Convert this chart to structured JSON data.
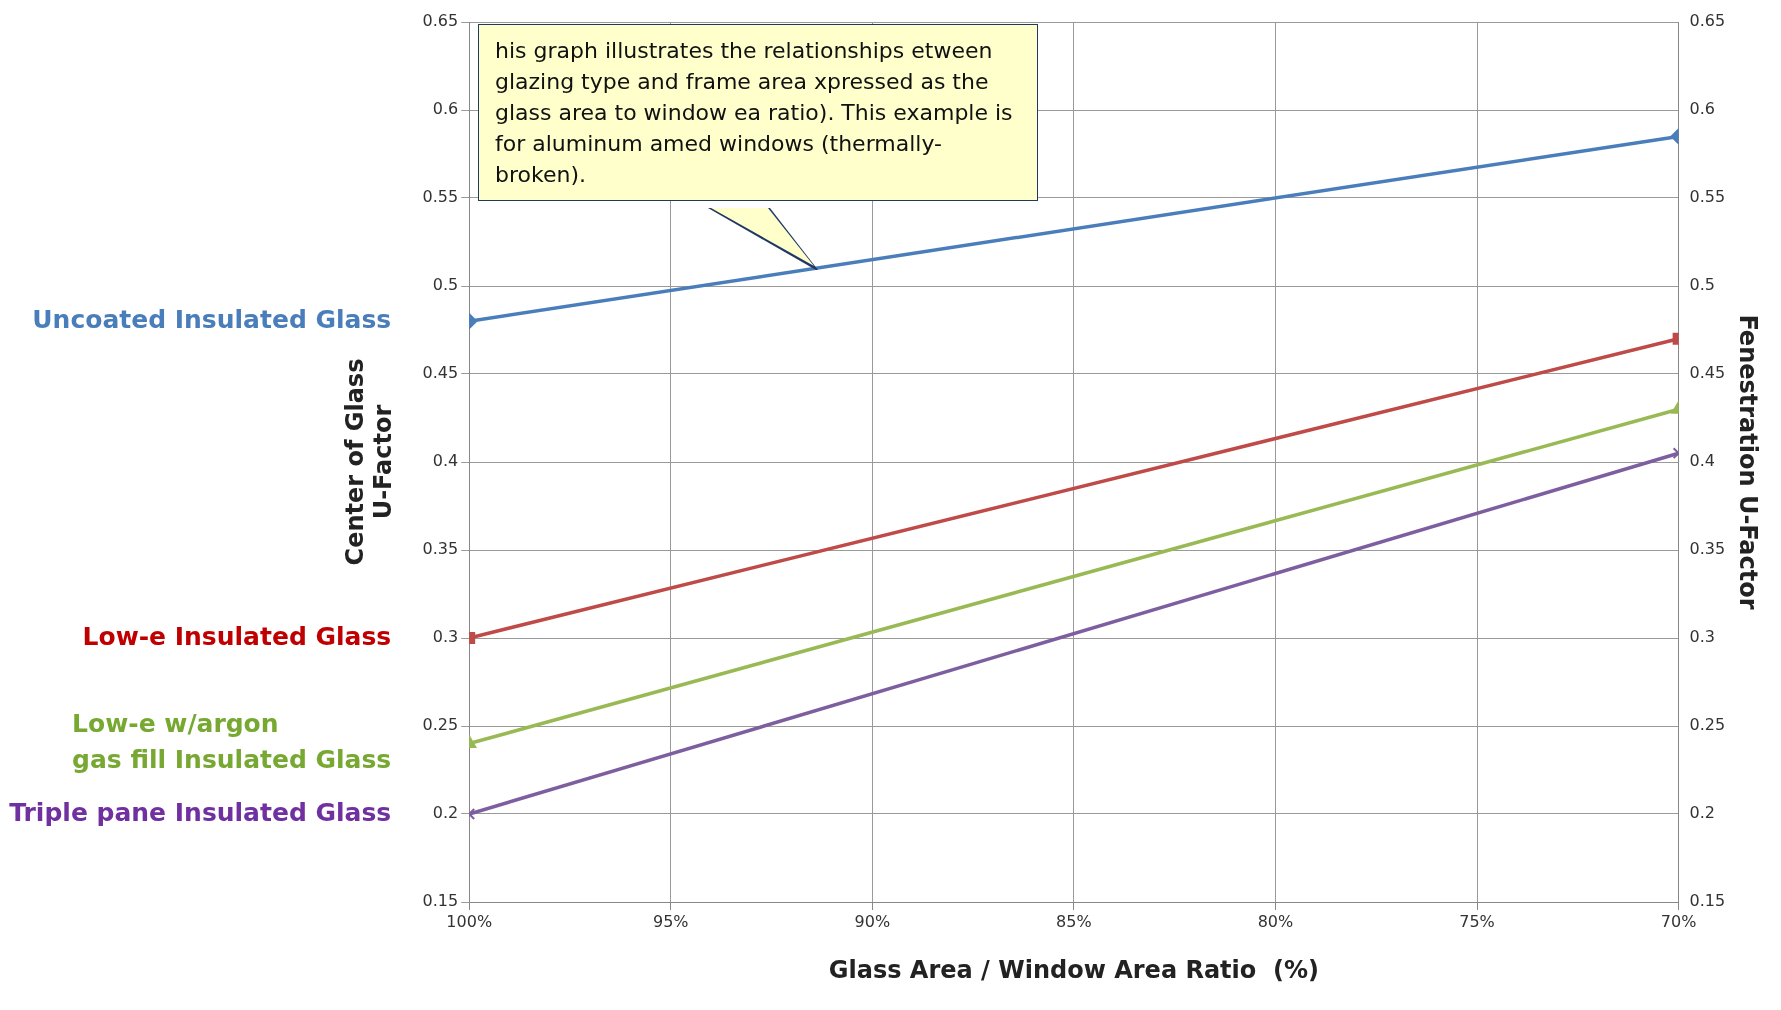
{
  "chart_data": {
    "type": "line",
    "xlabel": "Glass Area / Window Area Ratio  (%)",
    "ylabel": "Center of Glass\nU-Factor",
    "y2label": "Fenestration U-Factor",
    "annotations": [
      "his graph illustrates the relationships etween glazing type and frame area xpressed as the glass area to window ea ratio). This example is for aluminum amed windows (thermally-broken)."
    ],
    "x": [
      100,
      70
    ],
    "xlim": [
      100,
      70
    ],
    "xticks": [
      {
        "value": 100,
        "label": "100%"
      },
      {
        "value": 95,
        "label": "95%"
      },
      {
        "value": 90,
        "label": "90%"
      },
      {
        "value": 85,
        "label": "85%"
      },
      {
        "value": 80,
        "label": "80%"
      },
      {
        "value": 75,
        "label": "75%"
      },
      {
        "value": 70,
        "label": "70%"
      }
    ],
    "ylim": [
      0.15,
      0.65
    ],
    "yticks": [
      0.15,
      0.2,
      0.25,
      0.3,
      0.35,
      0.4,
      0.45,
      0.5,
      0.55,
      0.6,
      0.65
    ],
    "y2lim": [
      0.15,
      0.65
    ],
    "y2ticks": [
      0.15,
      0.2,
      0.25,
      0.3,
      0.35,
      0.4,
      0.45,
      0.5,
      0.55,
      0.6,
      0.65
    ],
    "grid": true,
    "legend": false,
    "line_style": "solid",
    "series": [
      {
        "name": "Uncoated Insulated Glass",
        "color": "#4a7ebb",
        "marker": "diamond",
        "values": [
          0.48,
          0.585
        ]
      },
      {
        "name": "Low-e Insulated Glass",
        "color": "#be4b48",
        "marker": "square",
        "values": [
          0.3,
          0.47
        ]
      },
      {
        "name": "Low-e w/argon\ngas fill Insulated Glass",
        "color": "#98b954",
        "marker": "triangle",
        "values": [
          0.24,
          0.43
        ]
      },
      {
        "name": "Triple pane Insulated Glass",
        "color": "#7d5fa0",
        "marker": "cross",
        "values": [
          0.2,
          0.405
        ]
      }
    ]
  }
}
